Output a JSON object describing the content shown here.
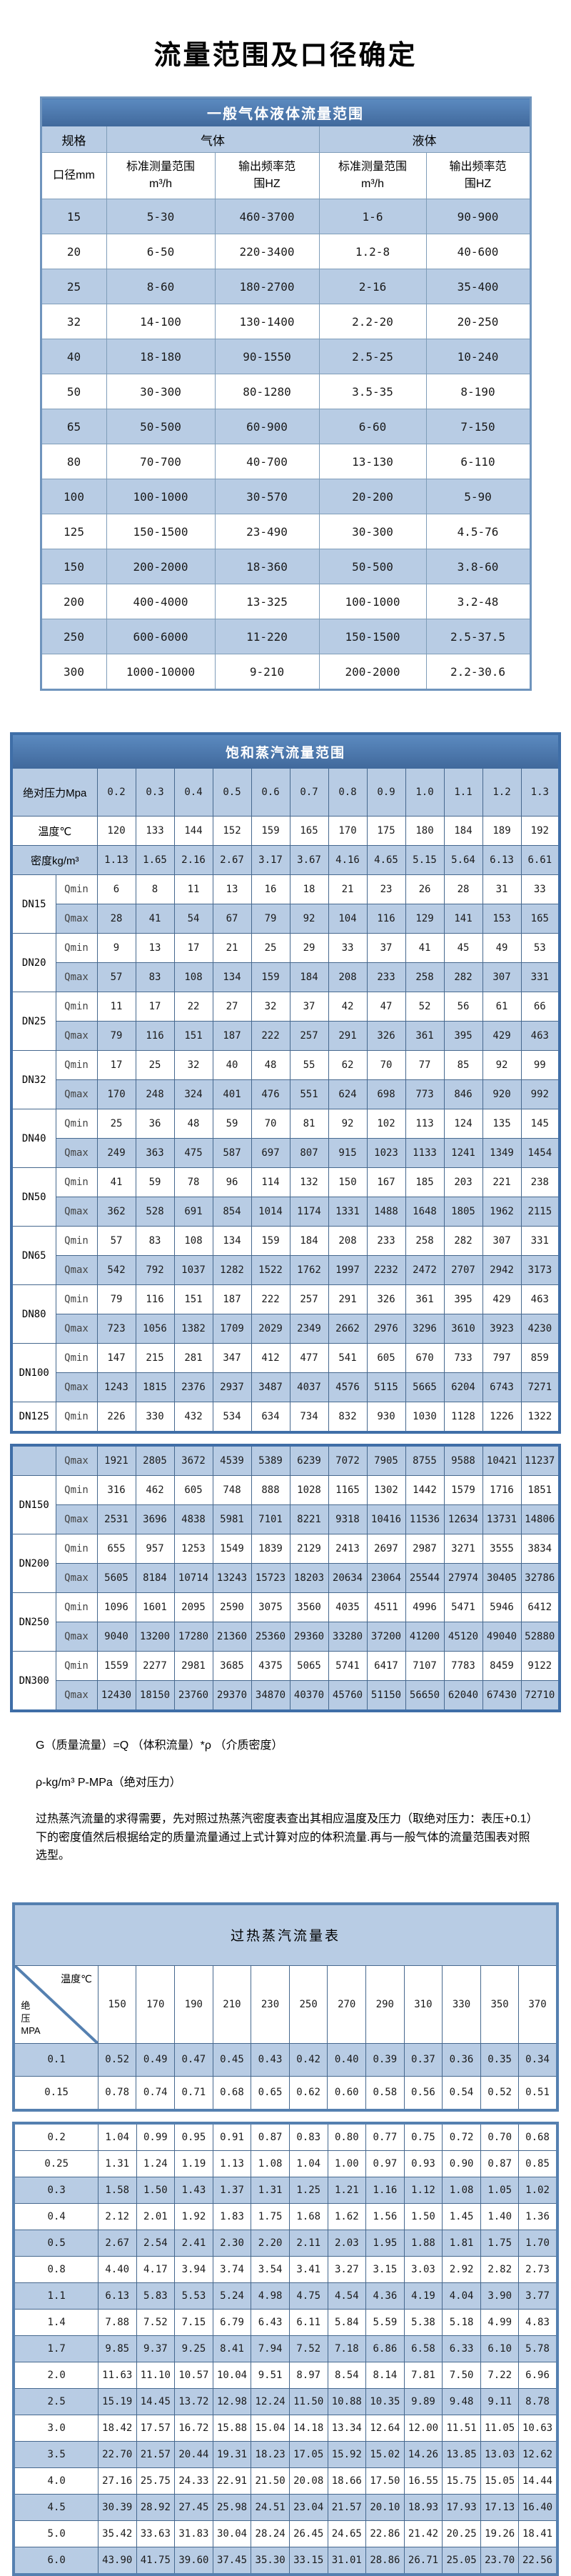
{
  "page_title": "流量范围及口径确定",
  "colors": {
    "header_blue": "#4a78ae",
    "band_blue": "#b8cce4",
    "frame_blue": "#3f6ea7"
  },
  "table1": {
    "title": "一般气体液体流量范围",
    "header": {
      "spec": "规格",
      "gas": "气体",
      "liquid": "液体",
      "diameter": "口径mm",
      "range_unit": "标准测量范围\nm³/h",
      "freq_unit": "输出频率范\n围HZ"
    },
    "rows": [
      {
        "dn": "15",
        "gas_range": "5-30",
        "gas_freq": "460-3700",
        "liq_range": "1-6",
        "liq_freq": "90-900"
      },
      {
        "dn": "20",
        "gas_range": "6-50",
        "gas_freq": "220-3400",
        "liq_range": "1.2-8",
        "liq_freq": "40-600"
      },
      {
        "dn": "25",
        "gas_range": "8-60",
        "gas_freq": "180-2700",
        "liq_range": "2-16",
        "liq_freq": "35-400"
      },
      {
        "dn": "32",
        "gas_range": "14-100",
        "gas_freq": "130-1400",
        "liq_range": "2.2-20",
        "liq_freq": "20-250"
      },
      {
        "dn": "40",
        "gas_range": "18-180",
        "gas_freq": "90-1550",
        "liq_range": "2.5-25",
        "liq_freq": "10-240"
      },
      {
        "dn": "50",
        "gas_range": "30-300",
        "gas_freq": "80-1280",
        "liq_range": "3.5-35",
        "liq_freq": "8-190"
      },
      {
        "dn": "65",
        "gas_range": "50-500",
        "gas_freq": "60-900",
        "liq_range": "6-60",
        "liq_freq": "7-150"
      },
      {
        "dn": "80",
        "gas_range": "70-700",
        "gas_freq": "40-700",
        "liq_range": "13-130",
        "liq_freq": "6-110"
      },
      {
        "dn": "100",
        "gas_range": "100-1000",
        "gas_freq": "30-570",
        "liq_range": "20-200",
        "liq_freq": "5-90"
      },
      {
        "dn": "125",
        "gas_range": "150-1500",
        "gas_freq": "23-490",
        "liq_range": "30-300",
        "liq_freq": "4.5-76"
      },
      {
        "dn": "150",
        "gas_range": "200-2000",
        "gas_freq": "18-360",
        "liq_range": "50-500",
        "liq_freq": "3.8-60"
      },
      {
        "dn": "200",
        "gas_range": "400-4000",
        "gas_freq": "13-325",
        "liq_range": "100-1000",
        "liq_freq": "3.2-48"
      },
      {
        "dn": "250",
        "gas_range": "600-6000",
        "gas_freq": "11-220",
        "liq_range": "150-1500",
        "liq_freq": "2.5-37.5"
      },
      {
        "dn": "300",
        "gas_range": "1000-10000",
        "gas_freq": "9-210",
        "liq_range": "200-2000",
        "liq_freq": "2.2-30.6"
      }
    ]
  },
  "table2": {
    "title": "饱和蒸汽流量范围",
    "pressure_label": "绝对压力Mpa",
    "temp_label": "温度℃",
    "density_label": "密度kg/m³",
    "qmin_label": "Qmin",
    "qmax_label": "Qmax",
    "pressures": [
      "0.2",
      "0.3",
      "0.4",
      "0.5",
      "0.6",
      "0.7",
      "0.8",
      "0.9",
      "1.0",
      "1.1",
      "1.2",
      "1.3"
    ],
    "temperatures": [
      "120",
      "133",
      "144",
      "152",
      "159",
      "165",
      "170",
      "175",
      "180",
      "184",
      "189",
      "192"
    ],
    "densities": [
      "1.13",
      "1.65",
      "2.16",
      "2.67",
      "3.17",
      "3.67",
      "4.16",
      "4.65",
      "5.15",
      "5.64",
      "6.13",
      "6.61"
    ],
    "block1": [
      {
        "dn": "DN15",
        "qmin": [
          "6",
          "8",
          "11",
          "13",
          "16",
          "18",
          "21",
          "23",
          "26",
          "28",
          "31",
          "33"
        ],
        "qmax": [
          "28",
          "41",
          "54",
          "67",
          "79",
          "92",
          "104",
          "116",
          "129",
          "141",
          "153",
          "165"
        ]
      },
      {
        "dn": "DN20",
        "qmin": [
          "9",
          "13",
          "17",
          "21",
          "25",
          "29",
          "33",
          "37",
          "41",
          "45",
          "49",
          "53"
        ],
        "qmax": [
          "57",
          "83",
          "108",
          "134",
          "159",
          "184",
          "208",
          "233",
          "258",
          "282",
          "307",
          "331"
        ]
      },
      {
        "dn": "DN25",
        "qmin": [
          "11",
          "17",
          "22",
          "27",
          "32",
          "37",
          "42",
          "47",
          "52",
          "56",
          "61",
          "66"
        ],
        "qmax": [
          "79",
          "116",
          "151",
          "187",
          "222",
          "257",
          "291",
          "326",
          "361",
          "395",
          "429",
          "463"
        ]
      },
      {
        "dn": "DN32",
        "qmin": [
          "17",
          "25",
          "32",
          "40",
          "48",
          "55",
          "62",
          "70",
          "77",
          "85",
          "92",
          "99"
        ],
        "qmax": [
          "170",
          "248",
          "324",
          "401",
          "476",
          "551",
          "624",
          "698",
          "773",
          "846",
          "920",
          "992"
        ]
      },
      {
        "dn": "DN40",
        "qmin": [
          "25",
          "36",
          "48",
          "59",
          "70",
          "81",
          "92",
          "102",
          "113",
          "124",
          "135",
          "145"
        ],
        "qmax": [
          "249",
          "363",
          "475",
          "587",
          "697",
          "807",
          "915",
          "1023",
          "1133",
          "1241",
          "1349",
          "1454"
        ]
      },
      {
        "dn": "DN50",
        "qmin": [
          "41",
          "59",
          "78",
          "96",
          "114",
          "132",
          "150",
          "167",
          "185",
          "203",
          "221",
          "238"
        ],
        "qmax": [
          "362",
          "528",
          "691",
          "854",
          "1014",
          "1174",
          "1331",
          "1488",
          "1648",
          "1805",
          "1962",
          "2115"
        ]
      },
      {
        "dn": "DN65",
        "qmin": [
          "57",
          "83",
          "108",
          "134",
          "159",
          "184",
          "208",
          "233",
          "258",
          "282",
          "307",
          "331"
        ],
        "qmax": [
          "542",
          "792",
          "1037",
          "1282",
          "1522",
          "1762",
          "1997",
          "2232",
          "2472",
          "2707",
          "2942",
          "3173"
        ]
      },
      {
        "dn": "DN80",
        "qmin": [
          "79",
          "116",
          "151",
          "187",
          "222",
          "257",
          "291",
          "326",
          "361",
          "395",
          "429",
          "463"
        ],
        "qmax": [
          "723",
          "1056",
          "1382",
          "1709",
          "2029",
          "2349",
          "2662",
          "2976",
          "3296",
          "3610",
          "3923",
          "4230"
        ]
      },
      {
        "dn": "DN100",
        "qmin": [
          "147",
          "215",
          "281",
          "347",
          "412",
          "477",
          "541",
          "605",
          "670",
          "733",
          "797",
          "859"
        ],
        "qmax": [
          "1243",
          "1815",
          "2376",
          "2937",
          "3487",
          "4037",
          "4576",
          "5115",
          "5665",
          "6204",
          "6743",
          "7271"
        ]
      },
      {
        "dn": "DN125",
        "qmin": [
          "226",
          "330",
          "432",
          "534",
          "634",
          "734",
          "832",
          "930",
          "1030",
          "1128",
          "1226",
          "1322"
        ]
      }
    ],
    "block2": [
      {
        "dn": "",
        "qmax": [
          "1921",
          "2805",
          "3672",
          "4539",
          "5389",
          "6239",
          "7072",
          "7905",
          "8755",
          "9588",
          "10421",
          "11237"
        ]
      },
      {
        "dn": "DN150",
        "qmin": [
          "316",
          "462",
          "605",
          "748",
          "888",
          "1028",
          "1165",
          "1302",
          "1442",
          "1579",
          "1716",
          "1851"
        ],
        "qmax": [
          "2531",
          "3696",
          "4838",
          "5981",
          "7101",
          "8221",
          "9318",
          "10416",
          "11536",
          "12634",
          "13731",
          "14806"
        ]
      },
      {
        "dn": "DN200",
        "qmin": [
          "655",
          "957",
          "1253",
          "1549",
          "1839",
          "2129",
          "2413",
          "2697",
          "2987",
          "3271",
          "3555",
          "3834"
        ],
        "qmax": [
          "5605",
          "8184",
          "10714",
          "13243",
          "15723",
          "18203",
          "20634",
          "23064",
          "25544",
          "27974",
          "30405",
          "32786"
        ]
      },
      {
        "dn": "DN250",
        "qmin": [
          "1096",
          "1601",
          "2095",
          "2590",
          "3075",
          "3560",
          "4035",
          "4511",
          "4996",
          "5471",
          "5946",
          "6412"
        ],
        "qmax": [
          "9040",
          "13200",
          "17280",
          "21360",
          "25360",
          "29360",
          "33280",
          "37200",
          "41200",
          "45120",
          "49040",
          "52880"
        ]
      },
      {
        "dn": "DN300",
        "qmin": [
          "1559",
          "2277",
          "2981",
          "3685",
          "4375",
          "5065",
          "5741",
          "6417",
          "7107",
          "7783",
          "8459",
          "9122"
        ],
        "qmax": [
          "12430",
          "18150",
          "23760",
          "29370",
          "34870",
          "40370",
          "45760",
          "51150",
          "56650",
          "62040",
          "67430",
          "72710"
        ]
      }
    ]
  },
  "notes": [
    "G（质量流量）=Q （体积流量）*ρ （介质密度）",
    "ρ-kg/m³ P-MPa（绝对压力）",
    "过热蒸汽流量的求得需要，先对照过热蒸汽密度表查出其相应温度及压力（取绝对压力：表压+0.1）下的密度值然后根据给定的质量流量通过上式计算对应的体积流量.再与一般气体的流量范围表对照选型。"
  ],
  "table3": {
    "title": "过热蒸汽流量表",
    "corner_top": "温度℃",
    "corner_bottom": "绝\n压\nMPA",
    "temps": [
      "150",
      "170",
      "190",
      "210",
      "230",
      "250",
      "270",
      "290",
      "310",
      "330",
      "350",
      "370"
    ],
    "block1": [
      {
        "p": "0.1",
        "shaded": true,
        "v": [
          "0.52",
          "0.49",
          "0.47",
          "0.45",
          "0.43",
          "0.42",
          "0.40",
          "0.39",
          "0.37",
          "0.36",
          "0.35",
          "0.34"
        ]
      },
      {
        "p": "0.15",
        "shaded": false,
        "v": [
          "0.78",
          "0.74",
          "0.71",
          "0.68",
          "0.65",
          "0.62",
          "0.60",
          "0.58",
          "0.56",
          "0.54",
          "0.52",
          "0.51"
        ]
      }
    ],
    "block2": [
      {
        "p": "0.2",
        "shaded": false,
        "v": [
          "1.04",
          "0.99",
          "0.95",
          "0.91",
          "0.87",
          "0.83",
          "0.80",
          "0.77",
          "0.75",
          "0.72",
          "0.70",
          "0.68"
        ]
      },
      {
        "p": "0.25",
        "shaded": false,
        "v": [
          "1.31",
          "1.24",
          "1.19",
          "1.13",
          "1.08",
          "1.04",
          "1.00",
          "0.97",
          "0.93",
          "0.90",
          "0.87",
          "0.85"
        ]
      },
      {
        "p": "0.3",
        "shaded": true,
        "v": [
          "1.58",
          "1.50",
          "1.43",
          "1.37",
          "1.31",
          "1.25",
          "1.21",
          "1.16",
          "1.12",
          "1.08",
          "1.05",
          "1.02"
        ]
      },
      {
        "p": "0.4",
        "shaded": false,
        "v": [
          "2.12",
          "2.01",
          "1.92",
          "1.83",
          "1.75",
          "1.68",
          "1.62",
          "1.56",
          "1.50",
          "1.45",
          "1.40",
          "1.36"
        ]
      },
      {
        "p": "0.5",
        "shaded": true,
        "v": [
          "2.67",
          "2.54",
          "2.41",
          "2.30",
          "2.20",
          "2.11",
          "2.03",
          "1.95",
          "1.88",
          "1.81",
          "1.75",
          "1.70"
        ]
      },
      {
        "p": "0.8",
        "shaded": false,
        "v": [
          "4.40",
          "4.17",
          "3.94",
          "3.74",
          "3.54",
          "3.41",
          "3.27",
          "3.15",
          "3.03",
          "2.92",
          "2.82",
          "2.73"
        ]
      },
      {
        "p": "1.1",
        "shaded": true,
        "v": [
          "6.13",
          "5.83",
          "5.53",
          "5.24",
          "4.98",
          "4.75",
          "4.54",
          "4.36",
          "4.19",
          "4.04",
          "3.90",
          "3.77"
        ]
      },
      {
        "p": "1.4",
        "shaded": false,
        "v": [
          "7.88",
          "7.52",
          "7.15",
          "6.79",
          "6.43",
          "6.11",
          "5.84",
          "5.59",
          "5.38",
          "5.18",
          "4.99",
          "4.83"
        ]
      },
      {
        "p": "1.7",
        "shaded": true,
        "v": [
          "9.85",
          "9.37",
          "9.25",
          "8.41",
          "7.94",
          "7.52",
          "7.18",
          "6.86",
          "6.58",
          "6.33",
          "6.10",
          "5.78"
        ]
      },
      {
        "p": "2.0",
        "shaded": false,
        "v": [
          "11.63",
          "11.10",
          "10.57",
          "10.04",
          "9.51",
          "8.97",
          "8.54",
          "8.14",
          "7.81",
          "7.50",
          "7.22",
          "6.96"
        ]
      },
      {
        "p": "2.5",
        "shaded": true,
        "v": [
          "15.19",
          "14.45",
          "13.72",
          "12.98",
          "12.24",
          "11.50",
          "10.88",
          "10.35",
          "9.89",
          "9.48",
          "9.11",
          "8.78"
        ]
      },
      {
        "p": "3.0",
        "shaded": false,
        "v": [
          "18.42",
          "17.57",
          "16.72",
          "15.88",
          "15.04",
          "14.18",
          "13.34",
          "12.64",
          "12.00",
          "11.51",
          "11.05",
          "10.63"
        ]
      },
      {
        "p": "3.5",
        "shaded": true,
        "v": [
          "22.70",
          "21.57",
          "20.44",
          "19.31",
          "18.23",
          "17.05",
          "15.92",
          "15.02",
          "14.26",
          "13.85",
          "13.03",
          "12.62"
        ]
      },
      {
        "p": "4.0",
        "shaded": false,
        "v": [
          "27.16",
          "25.75",
          "24.33",
          "22.91",
          "21.50",
          "20.08",
          "18.66",
          "17.50",
          "16.55",
          "15.75",
          "15.05",
          "14.44"
        ]
      },
      {
        "p": "4.5",
        "shaded": true,
        "v": [
          "30.39",
          "28.92",
          "27.45",
          "25.98",
          "24.51",
          "23.04",
          "21.57",
          "20.10",
          "18.93",
          "17.93",
          "17.13",
          "16.40"
        ]
      },
      {
        "p": "5.0",
        "shaded": false,
        "v": [
          "35.42",
          "33.63",
          "31.83",
          "30.04",
          "28.24",
          "26.45",
          "24.65",
          "22.86",
          "21.42",
          "20.25",
          "19.26",
          "18.41"
        ]
      },
      {
        "p": "6.0",
        "shaded": true,
        "v": [
          "43.90",
          "41.75",
          "39.60",
          "37.45",
          "35.30",
          "33.15",
          "31.01",
          "28.86",
          "26.71",
          "25.05",
          "23.70",
          "22.56"
        ]
      }
    ]
  }
}
